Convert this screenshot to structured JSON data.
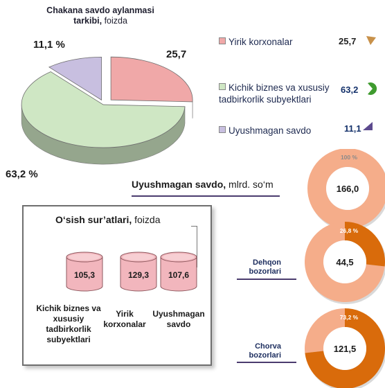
{
  "pie_section": {
    "title_bold": "Chakana savdo aylanmasi tarkibi,",
    "title_unit": "foizda",
    "slice_labels": [
      "25,7",
      "63,2 %",
      "11,1 %"
    ]
  },
  "legend": [
    {
      "label": "Yirik korxonalar",
      "value": "25,7",
      "color": "#f0a8a8",
      "icon": "pie-wedge-icon",
      "icon_color": "#c8914a",
      "value_color": "#222222"
    },
    {
      "label": "Kichik biznes va xususiy tadbirkorlik subyektlari",
      "value": "63,2",
      "color": "#cfe7c4",
      "icon": "pie-wedge-icon",
      "icon_color": "#3f9b2f",
      "value_color": "#13306a"
    },
    {
      "label": "Uyushmagan savdo",
      "value": "11,1",
      "color": "#c8bfe0",
      "icon": "pie-wedge-icon",
      "icon_color": "#5c4a8e",
      "value_color": "#13306a"
    }
  ],
  "uyushmagan": {
    "title_bold": "Uyushmagan savdo,",
    "title_unit": "mlrd. so‘m"
  },
  "growth": {
    "title_bold": "O‘sish sur’atlari,",
    "title_unit": "foizda",
    "items": [
      {
        "value": "105,3",
        "caption": "Kichik biznes va xususiy tadbirkorlik subyektlari"
      },
      {
        "value": "129,3",
        "caption": "Yirik korxonalar"
      },
      {
        "value": "107,6",
        "caption": "Uyushmagan savdo"
      }
    ]
  },
  "donuts": [
    {
      "center": "166,0",
      "share_label": "100 %",
      "label": ""
    },
    {
      "center": "44,5",
      "share_label": "26,8 %",
      "label": "Dehqon bozorlari"
    },
    {
      "center": "121,5",
      "share_label": "73,2 %",
      "label": "Chorva bozorlari"
    }
  ],
  "colors": {
    "pie_large": "#cfe7c4",
    "pie_top": "#f0a8a8",
    "pie_small": "#c8bfe0",
    "donut_base": "#f5ad8a",
    "donut_share": "#d96b0b",
    "cylinder": "#f2b6bd"
  },
  "chart_data": [
    {
      "type": "pie",
      "title": "Chakana savdo aylanmasi tarkibi, foizda",
      "categories": [
        "Yirik korxonalar",
        "Kichik biznes va xususiy tadbirkorlik subyektlari",
        "Uyushmagan savdo"
      ],
      "values": [
        25.7,
        63.2,
        11.1
      ],
      "legend_position": "right"
    },
    {
      "type": "bar",
      "title": "O‘sish sur’atlari, foizda",
      "categories": [
        "Kichik biznes va xususiy tadbirkorlik subyektlari",
        "Yirik korxonalar",
        "Uyushmagan savdo"
      ],
      "values": [
        105.3,
        129.3,
        107.6
      ]
    },
    {
      "type": "pie",
      "title": "Uyushmagan savdo, mlrd. so‘m",
      "donuts": [
        {
          "label": "",
          "total": 166.0,
          "share_percent": 100
        },
        {
          "label": "Dehqon bozorlari",
          "total": 44.5,
          "share_percent": 26.8
        },
        {
          "label": "Chorva bozorlari",
          "total": 121.5,
          "share_percent": 73.2
        }
      ]
    }
  ]
}
